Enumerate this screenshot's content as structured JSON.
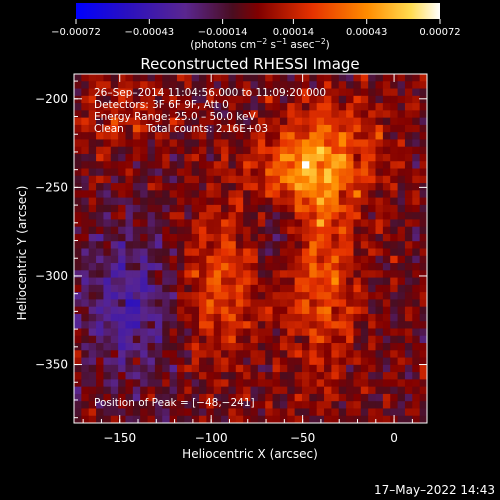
{
  "chart_data": {
    "type": "heatmap",
    "title": "Reconstructed RHESSI Image",
    "xlabel": "Heliocentric X (arcsec)",
    "ylabel": "Heliocentric Y (arcsec)",
    "xlim": [
      -175,
      18
    ],
    "ylim": [
      -383,
      -186
    ],
    "x_ticks": [
      -150,
      -100,
      -50,
      0
    ],
    "x_tick_labels": [
      "−150",
      "−100",
      "−50",
      "0"
    ],
    "y_ticks": [
      -200,
      -250,
      -300,
      -350
    ],
    "y_tick_labels": [
      "−200",
      "−250",
      "−300",
      "−350"
    ],
    "colorbar": {
      "range": [
        -0.00072,
        0.00072
      ],
      "ticks": [
        -0.00072,
        -0.00043,
        -0.00014,
        0.00014,
        0.00043,
        0.00072
      ],
      "tick_labels": [
        "−0.00072",
        "−0.00043",
        "−0.00014",
        "0.00014",
        "0.00043",
        "0.00072"
      ],
      "units_main": "(photons cm",
      "units_exp1": "−2",
      "units_mid": " s",
      "units_exp2": "−1",
      "units_end": " asec",
      "units_exp3": "−2",
      "units_close": ")"
    },
    "annotations": {
      "time_range": "26–Sep–2014 11:04:56.000 to 11:09:20.000",
      "detectors": "Detectors: 3F 6F 9F, Att 0",
      "energy_range": "Energy Range: 25.0 – 50.0 keV",
      "algorithm": "Clean",
      "total_counts": "Total counts: 2.16E+03",
      "peak": "Position of Peak = [−48,−241]"
    },
    "peak_position": [
      -48,
      -241
    ],
    "grid_resolution": [
      48,
      48
    ]
  },
  "footer": {
    "timestamp": "17–May–2022 14:43"
  }
}
